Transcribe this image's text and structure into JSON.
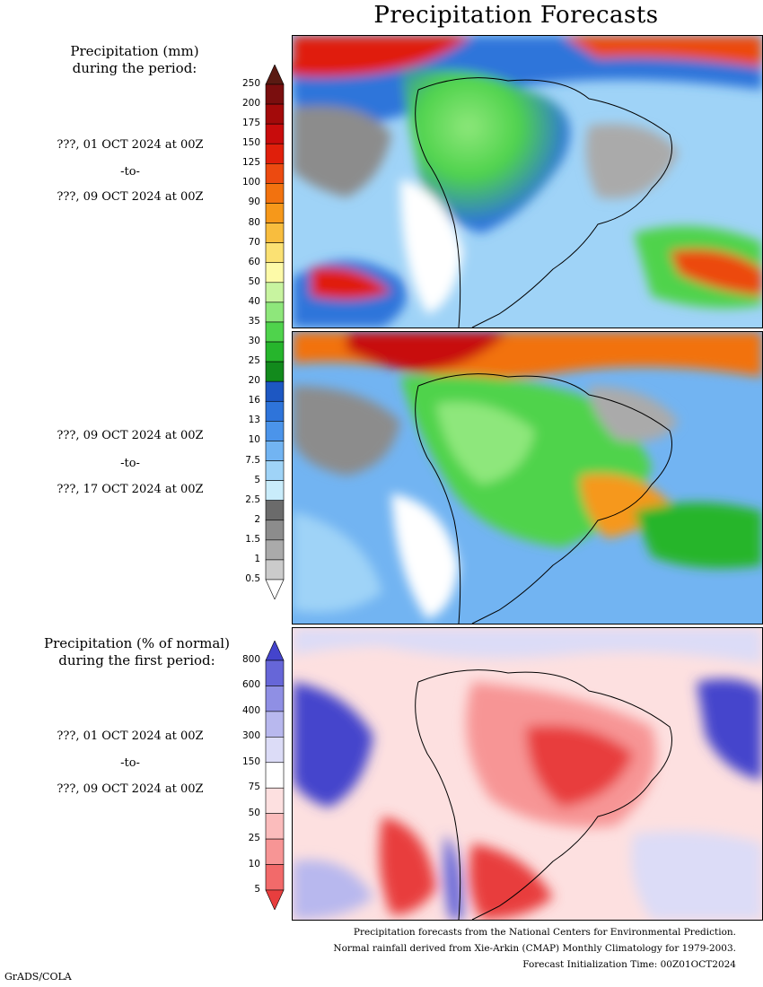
{
  "title": "Precipitation Forecasts",
  "legend_mm": {
    "heading_line1": "Precipitation (mm)",
    "heading_line2": "during the period:",
    "levels": [
      "250",
      "200",
      "175",
      "150",
      "125",
      "100",
      "90",
      "80",
      "70",
      "60",
      "50",
      "40",
      "35",
      "30",
      "25",
      "20",
      "16",
      "13",
      "10",
      "7.5",
      "5",
      "2.5",
      "2",
      "1.5",
      "1",
      "0.5"
    ],
    "colors": [
      "#5a1a12",
      "#7a0e0e",
      "#a30a0a",
      "#c80c0c",
      "#e01f0b",
      "#ec4a10",
      "#f2720f",
      "#f6981a",
      "#f8bd3e",
      "#fbe173",
      "#fdfaa8",
      "#c8f4a0",
      "#8ee77b",
      "#4fd34c",
      "#26b52c",
      "#128a1c",
      "#1d57c2",
      "#2e74da",
      "#4b94ea",
      "#72b4f2",
      "#9fd3f7",
      "#c9ecfb",
      "#6b6b6b",
      "#8c8c8c",
      "#aaaaaa",
      "#cbcbcb",
      "#ffffff"
    ]
  },
  "legend_pct": {
    "heading_line1": "Precipitation (% of normal)",
    "heading_line2": "during the first period:",
    "levels": [
      "800",
      "600",
      "400",
      "300",
      "150",
      "75",
      "50",
      "25",
      "10",
      "5"
    ],
    "colors": [
      "#4444cc",
      "#6666d8",
      "#8f8fe4",
      "#b8b8ee",
      "#dcdcf7",
      "#ffffff",
      "#fde0e0",
      "#fbbcbc",
      "#f79595",
      "#f26a6a",
      "#e83e3e"
    ]
  },
  "periods": [
    {
      "start": "???, 01 OCT 2024 at 00Z",
      "sep": "-to-",
      "end": "???, 09 OCT 2024 at 00Z"
    },
    {
      "start": "???, 09 OCT 2024 at 00Z",
      "sep": "-to-",
      "end": "???, 17 OCT 2024 at 00Z"
    },
    {
      "start": "???, 01 OCT 2024 at 00Z",
      "sep": "-to-",
      "end": "???, 09 OCT 2024 at 00Z"
    }
  ],
  "footer": {
    "line1": "Precipitation forecasts from the National Centers for Environmental Prediction.",
    "line2": "Normal rainfall derived from Xie-Arkin (CMAP) Monthly Climatology for 1979-2003.",
    "line3": "Forecast Initialization Time: 00Z01OCT2024"
  },
  "credit": "GrADS/COLA"
}
